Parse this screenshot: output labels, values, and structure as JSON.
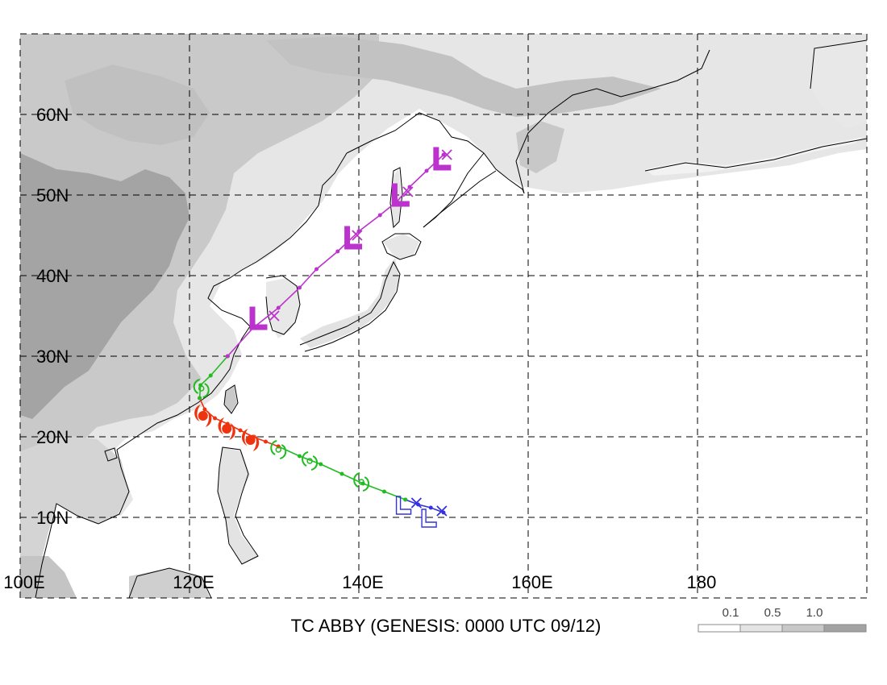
{
  "map": {
    "title": "TC ABBY (GENESIS: 0000 UTC 09/12)",
    "lon_range": [
      100,
      200
    ],
    "lat_range": [
      0,
      70
    ],
    "lat_labels": [
      {
        "value": 60,
        "text": "60N"
      },
      {
        "value": 50,
        "text": "50N"
      },
      {
        "value": 40,
        "text": "40N"
      },
      {
        "value": 30,
        "text": "30N"
      },
      {
        "value": 20,
        "text": "20N"
      },
      {
        "value": 10,
        "text": "10N"
      }
    ],
    "lon_labels": [
      {
        "value": 100,
        "text": "100E"
      },
      {
        "value": 120,
        "text": "120E"
      },
      {
        "value": 140,
        "text": "140E"
      },
      {
        "value": 160,
        "text": "160E"
      },
      {
        "value": 180,
        "text": "180"
      }
    ],
    "shading_colors": [
      "#ffffff",
      "#e4e4e4",
      "#c8c8c8",
      "#a3a3a3"
    ],
    "legend": {
      "labels": [
        "0.1",
        "0.5",
        "1.0"
      ]
    }
  },
  "track": {
    "segments": [
      {
        "stage": "low",
        "color": "#3333dd",
        "points": [
          [
            150,
            10.6
          ],
          [
            148.5,
            11.2
          ],
          [
            147,
            11.6
          ],
          [
            145.5,
            12.2
          ]
        ]
      },
      {
        "stage": "tropical-storm",
        "color": "#22bb22",
        "points": [
          [
            145.5,
            12.2
          ],
          [
            143,
            13.2
          ],
          [
            140.5,
            14.2
          ],
          [
            138,
            15.4
          ],
          [
            135.5,
            16.6
          ],
          [
            133,
            17.6
          ],
          [
            130.5,
            18.8
          ]
        ]
      },
      {
        "stage": "typhoon",
        "color": "#ee3311",
        "points": [
          [
            130.5,
            18.8
          ],
          [
            129,
            19.4
          ],
          [
            127.5,
            20
          ],
          [
            126,
            20.8
          ],
          [
            124.5,
            21.6
          ],
          [
            123,
            22.3
          ],
          [
            121.8,
            23.4
          ],
          [
            121.2,
            24.8
          ]
        ]
      },
      {
        "stage": "tropical-storm",
        "color": "#22bb22",
        "points": [
          [
            121.2,
            24.8
          ],
          [
            121.3,
            26.4
          ],
          [
            122.5,
            27.6
          ],
          [
            124.5,
            30
          ]
        ]
      },
      {
        "stage": "extratropical",
        "color": "#bb33cc",
        "points": [
          [
            124.5,
            30
          ],
          [
            127.5,
            33.5
          ],
          [
            130.5,
            36
          ],
          [
            133,
            38.5
          ],
          [
            135,
            40.8
          ],
          [
            137.5,
            43
          ],
          [
            140,
            45.5
          ],
          [
            142.5,
            47.5
          ],
          [
            144.5,
            49.2
          ],
          [
            146,
            51
          ],
          [
            148,
            53
          ],
          [
            150,
            55
          ]
        ]
      }
    ],
    "symbols": [
      {
        "type": "low-L",
        "color": "#3333dd",
        "lon": 145.2,
        "lat": 11.4
      },
      {
        "type": "low-L",
        "color": "#3333dd",
        "lon": 148.2,
        "lat": 9.8
      },
      {
        "type": "x",
        "color": "#3333dd",
        "lon": 146.8,
        "lat": 11.8
      },
      {
        "type": "x",
        "color": "#3333dd",
        "lon": 149.8,
        "lat": 10.8
      },
      {
        "type": "storm",
        "color": "#22bb22",
        "lon": 140.3,
        "lat": 14.4
      },
      {
        "type": "storm",
        "color": "#22bb22",
        "lon": 134.2,
        "lat": 17.0
      },
      {
        "type": "storm",
        "color": "#22bb22",
        "lon": 130.5,
        "lat": 18.4
      },
      {
        "type": "typhoon",
        "color": "#ee3311",
        "lon": 127.2,
        "lat": 19.6
      },
      {
        "type": "typhoon",
        "color": "#ee3311",
        "lon": 124.4,
        "lat": 21.0
      },
      {
        "type": "typhoon",
        "color": "#ee3311",
        "lon": 121.6,
        "lat": 22.6
      },
      {
        "type": "storm",
        "color": "#22bb22",
        "lon": 121.4,
        "lat": 26.0
      },
      {
        "type": "ext-L",
        "color": "#bb33cc",
        "lon": 128.0,
        "lat": 34.5
      },
      {
        "type": "ext-L",
        "color": "#bb33cc",
        "lon": 139.2,
        "lat": 44.5
      },
      {
        "type": "ext-L",
        "color": "#bb33cc",
        "lon": 144.8,
        "lat": 49.8
      },
      {
        "type": "ext-L",
        "color": "#bb33cc",
        "lon": 149.7,
        "lat": 54.3
      },
      {
        "type": "x",
        "color": "#bb33cc",
        "lon": 130.0,
        "lat": 35.0
      },
      {
        "type": "x",
        "color": "#bb33cc",
        "lon": 139.8,
        "lat": 45.0
      },
      {
        "type": "x",
        "color": "#bb33cc",
        "lon": 145.8,
        "lat": 50.4
      },
      {
        "type": "x",
        "color": "#bb33cc",
        "lon": 150.4,
        "lat": 55.0
      }
    ]
  }
}
